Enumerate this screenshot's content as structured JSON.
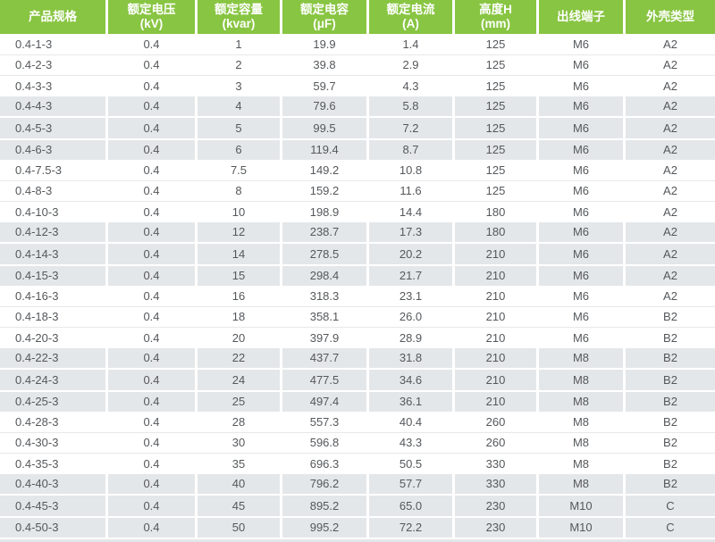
{
  "table": {
    "columns": [
      {
        "title": "产品规格",
        "unit": ""
      },
      {
        "title": "额定电压",
        "unit": "(kV)"
      },
      {
        "title": "额定容量",
        "unit": "(kvar)"
      },
      {
        "title": "额定电容",
        "unit": "(μF)"
      },
      {
        "title": "额定电流",
        "unit": "(A)"
      },
      {
        "title": "高度H",
        "unit": "(mm)"
      },
      {
        "title": "出线端子",
        "unit": ""
      },
      {
        "title": "外壳类型",
        "unit": ""
      }
    ],
    "rows": [
      [
        "0.4-1-3",
        "0.4",
        "1",
        "19.9",
        "1.4",
        "125",
        "M6",
        "A2"
      ],
      [
        "0.4-2-3",
        "0.4",
        "2",
        "39.8",
        "2.9",
        "125",
        "M6",
        "A2"
      ],
      [
        "0.4-3-3",
        "0.4",
        "3",
        "59.7",
        "4.3",
        "125",
        "M6",
        "A2"
      ],
      [
        "0.4-4-3",
        "0.4",
        "4",
        "79.6",
        "5.8",
        "125",
        "M6",
        "A2"
      ],
      [
        "0.4-5-3",
        "0.4",
        "5",
        "99.5",
        "7.2",
        "125",
        "M6",
        "A2"
      ],
      [
        "0.4-6-3",
        "0.4",
        "6",
        "119.4",
        "8.7",
        "125",
        "M6",
        "A2"
      ],
      [
        "0.4-7.5-3",
        "0.4",
        "7.5",
        "149.2",
        "10.8",
        "125",
        "M6",
        "A2"
      ],
      [
        "0.4-8-3",
        "0.4",
        "8",
        "159.2",
        "11.6",
        "125",
        "M6",
        "A2"
      ],
      [
        "0.4-10-3",
        "0.4",
        "10",
        "198.9",
        "14.4",
        "180",
        "M6",
        "A2"
      ],
      [
        "0.4-12-3",
        "0.4",
        "12",
        "238.7",
        "17.3",
        "180",
        "M6",
        "A2"
      ],
      [
        "0.4-14-3",
        "0.4",
        "14",
        "278.5",
        "20.2",
        "210",
        "M6",
        "A2"
      ],
      [
        "0.4-15-3",
        "0.4",
        "15",
        "298.4",
        "21.7",
        "210",
        "M6",
        "A2"
      ],
      [
        "0.4-16-3",
        "0.4",
        "16",
        "318.3",
        "23.1",
        "210",
        "M6",
        "A2"
      ],
      [
        "0.4-18-3",
        "0.4",
        "18",
        "358.1",
        "26.0",
        "210",
        "M6",
        "B2"
      ],
      [
        "0.4-20-3",
        "0.4",
        "20",
        "397.9",
        "28.9",
        "210",
        "M6",
        "B2"
      ],
      [
        "0.4-22-3",
        "0.4",
        "22",
        "437.7",
        "31.8",
        "210",
        "M8",
        "B2"
      ],
      [
        "0.4-24-3",
        "0.4",
        "24",
        "477.5",
        "34.6",
        "210",
        "M8",
        "B2"
      ],
      [
        "0.4-25-3",
        "0.4",
        "25",
        "497.4",
        "36.1",
        "210",
        "M8",
        "B2"
      ],
      [
        "0.4-28-3",
        "0.4",
        "28",
        "557.3",
        "40.4",
        "260",
        "M8",
        "B2"
      ],
      [
        "0.4-30-3",
        "0.4",
        "30",
        "596.8",
        "43.3",
        "260",
        "M8",
        "B2"
      ],
      [
        "0.4-35-3",
        "0.4",
        "35",
        "696.3",
        "50.5",
        "330",
        "M8",
        "B2"
      ],
      [
        "0.4-40-3",
        "0.4",
        "40",
        "796.2",
        "57.7",
        "330",
        "M8",
        "B2"
      ],
      [
        "0.4-45-3",
        "0.4",
        "45",
        "895.2",
        "65.0",
        "230",
        "M10",
        "C"
      ],
      [
        "0.4-50-3",
        "0.4",
        "50",
        "995.2",
        "72.2",
        "230",
        "M10",
        "C"
      ]
    ],
    "colors": {
      "header_bg": "#88c542",
      "header_text": "#ffffff",
      "row_alt_bg": "#e4e7e9",
      "row_bg": "#ffffff",
      "body_text": "#55585b"
    }
  }
}
